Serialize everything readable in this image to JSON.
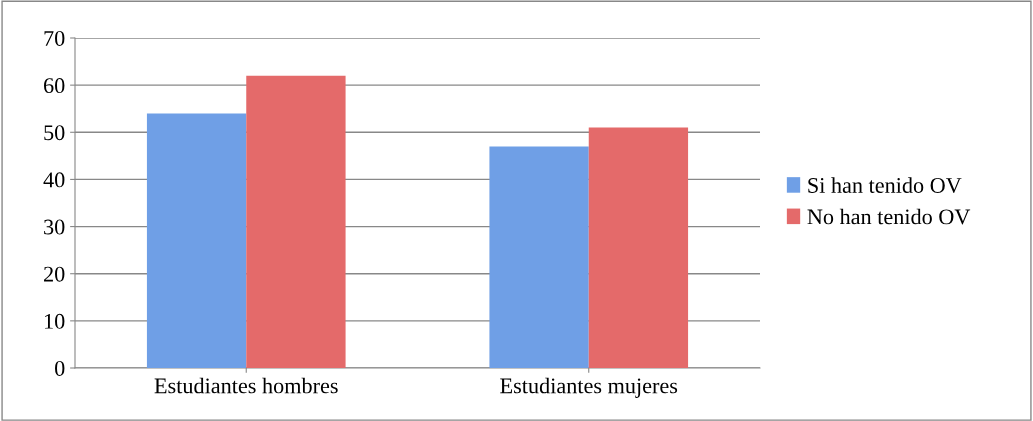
{
  "chart_data": {
    "type": "bar",
    "categories": [
      "Estudiantes hombres",
      "Estudiantes mujeres"
    ],
    "series": [
      {
        "name": "Si han tenido OV",
        "color": "#6f9fe6",
        "values": [
          54,
          47
        ]
      },
      {
        "name": "No han tenido OV",
        "color": "#e46a6a",
        "values": [
          62,
          51
        ]
      }
    ],
    "ylim": [
      0,
      70
    ],
    "yticks": [
      0,
      10,
      20,
      30,
      40,
      50,
      60,
      70
    ],
    "grid": "y",
    "legend": "right"
  }
}
